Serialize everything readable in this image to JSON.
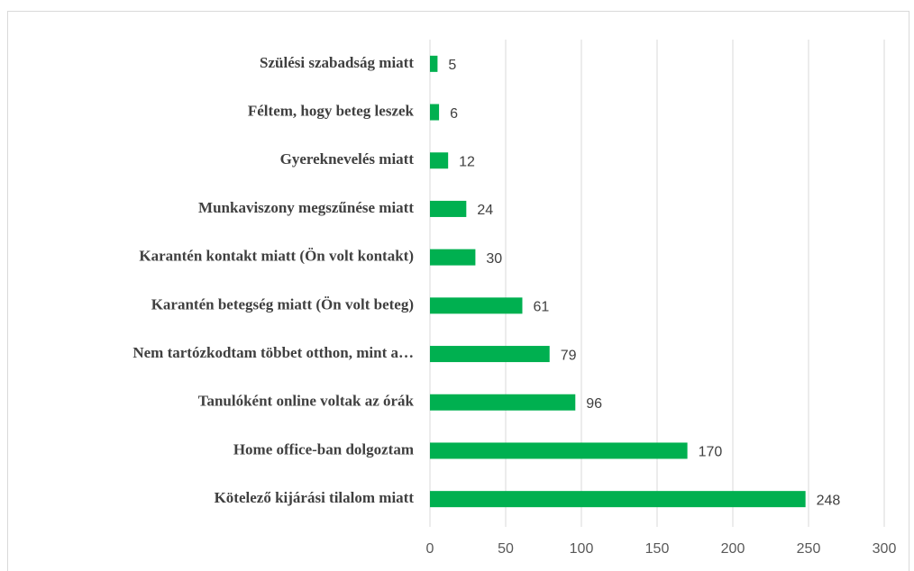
{
  "chart_data": {
    "type": "bar",
    "orientation": "horizontal",
    "categories": [
      "Szülési szabadság miatt",
      "Féltem, hogy beteg leszek",
      "Gyereknevelés miatt",
      "Munkaviszony megszűnése miatt",
      "Karantén kontakt miatt (Ön volt kontakt)",
      "Karantén betegség miatt (Ön volt beteg)",
      "Nem tartózkodtam többet otthon, mint a…",
      "Tanulóként online voltak az órák",
      "Home office-ban dolgoztam",
      "Kötelező kijárási tilalom miatt"
    ],
    "values": [
      5,
      6,
      12,
      24,
      30,
      61,
      79,
      96,
      170,
      248
    ],
    "color": "#00b050",
    "xlim": [
      0,
      300
    ],
    "xticks": [
      0,
      50,
      100,
      150,
      200,
      250,
      300
    ],
    "grid": true
  }
}
